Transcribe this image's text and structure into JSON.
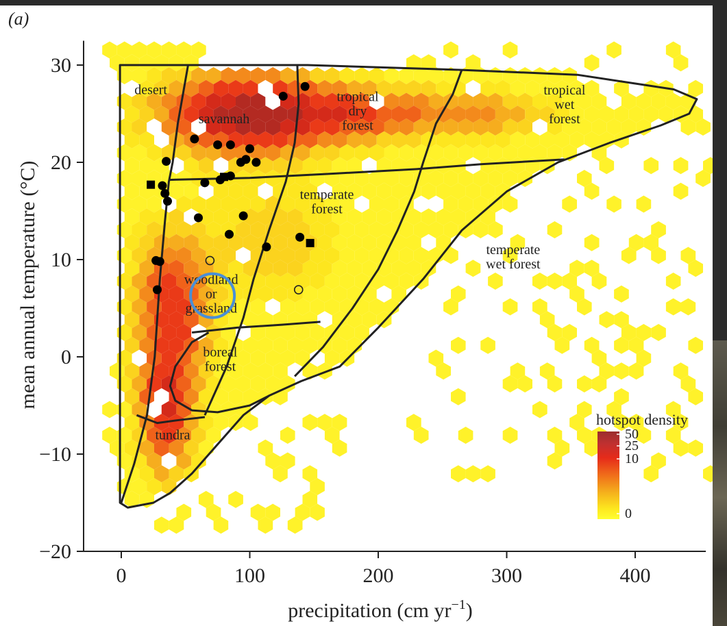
{
  "panel_label": "(a)",
  "chart_data": {
    "type": "scatter",
    "xlabel": "precipitation (cm yr",
    "xlabel_sup": "−1",
    "xlabel_close": ")",
    "ylabel": "mean annual temperature (°C)",
    "xlim": [
      -30,
      460
    ],
    "ylim": [
      -21,
      34
    ],
    "xticks": [
      0,
      100,
      200,
      300,
      400
    ],
    "xtick_labels": [
      "0",
      "100",
      "200",
      "300",
      "400"
    ],
    "yticks": [
      -20,
      -10,
      0,
      10,
      20,
      30
    ],
    "ytick_labels": [
      "−20",
      "−10",
      "0",
      "10",
      "20",
      "30"
    ],
    "grid": false,
    "biomes": [
      {
        "label": [
          "desert"
        ],
        "x": 23,
        "y": 27.5
      },
      {
        "label": [
          "savannah"
        ],
        "x": 80,
        "y": 24.5
      },
      {
        "label": [
          "tropical",
          "dry",
          "forest"
        ],
        "x": 184,
        "y": 25.3
      },
      {
        "label": [
          "tropical",
          "wet",
          "forest"
        ],
        "x": 345,
        "y": 26
      },
      {
        "label": [
          "temperate",
          "forest"
        ],
        "x": 160,
        "y": 16
      },
      {
        "label": [
          "temperate",
          "wet forest"
        ],
        "x": 305,
        "y": 10.3
      },
      {
        "label": [
          "woodland",
          "or",
          "grassland"
        ],
        "x": 70,
        "y": 6.5
      },
      {
        "label": [
          "boreal",
          "forest"
        ],
        "x": 77,
        "y": -0.2
      },
      {
        "label": [
          "tundra"
        ],
        "x": 40,
        "y": -8
      }
    ],
    "boundaries": [
      {
        "name": "outer",
        "points": [
          [
            -1,
            30
          ],
          [
            145,
            30
          ],
          [
            265,
            29.5
          ],
          [
            355,
            29
          ],
          [
            405,
            28
          ],
          [
            430,
            27.5
          ],
          [
            448,
            26.5
          ],
          [
            442,
            25
          ],
          [
            420,
            23.8
          ],
          [
            380,
            22
          ],
          [
            340,
            20
          ],
          [
            300,
            17
          ],
          [
            265,
            13
          ],
          [
            235,
            8
          ],
          [
            200,
            3
          ],
          [
            170,
            -1
          ],
          [
            140,
            -2.5
          ],
          [
            115,
            -4
          ],
          [
            95,
            -6
          ],
          [
            75,
            -9
          ],
          [
            55,
            -12
          ],
          [
            38,
            -14
          ],
          [
            25,
            -15
          ],
          [
            5,
            -15.5
          ],
          [
            -1,
            -15
          ]
        ]
      },
      {
        "name": "desert-savannah",
        "points": [
          [
            52,
            30
          ],
          [
            48,
            27
          ],
          [
            44,
            24
          ],
          [
            40,
            20
          ],
          [
            37,
            18
          ],
          [
            34,
            14
          ],
          [
            30,
            8
          ],
          [
            26,
            0
          ],
          [
            20,
            -6
          ],
          [
            10,
            -11
          ],
          [
            0,
            -15
          ]
        ]
      },
      {
        "name": "savannah-tropical-dry",
        "points": [
          [
            137,
            30
          ],
          [
            138,
            26
          ],
          [
            135,
            22
          ],
          [
            128,
            18
          ],
          [
            115,
            13
          ],
          [
            103,
            8
          ],
          [
            95,
            4
          ],
          [
            82,
            -1
          ],
          [
            65,
            -6
          ]
        ]
      },
      {
        "name": "tropical-dry-wet",
        "points": [
          [
            265,
            29.5
          ],
          [
            258,
            27
          ],
          [
            245,
            24
          ],
          [
            235,
            20
          ],
          [
            228,
            17
          ],
          [
            215,
            13
          ],
          [
            200,
            9
          ],
          [
            180,
            5
          ],
          [
            157,
            1
          ],
          [
            135,
            -2
          ]
        ]
      },
      {
        "name": "upper-horizontal",
        "points": [
          [
            37,
            18.2
          ],
          [
            100,
            18.4
          ],
          [
            160,
            18.8
          ],
          [
            230,
            19.3
          ],
          [
            280,
            19.8
          ],
          [
            345,
            20.3
          ]
        ]
      },
      {
        "name": "woodland-boreal",
        "points": [
          [
            55,
            2.5
          ],
          [
            90,
            3
          ],
          [
            125,
            3.3
          ],
          [
            155,
            3.6
          ]
        ]
      },
      {
        "name": "boreal-outline",
        "points": [
          [
            68,
            2.5
          ],
          [
            55,
            1.5
          ],
          [
            42,
            -1
          ],
          [
            38,
            -3
          ],
          [
            42,
            -4.5
          ],
          [
            55,
            -5.5
          ],
          [
            75,
            -5.7
          ],
          [
            100,
            -5
          ],
          [
            115,
            -4
          ]
        ]
      },
      {
        "name": "tundra-top",
        "points": [
          [
            12,
            -6
          ],
          [
            28,
            -6.8
          ],
          [
            45,
            -6.5
          ],
          [
            65,
            -6.2
          ]
        ]
      }
    ],
    "series": [
      {
        "marker": "filled-circle",
        "points": [
          [
            35,
            20.1
          ],
          [
            32,
            17.6
          ],
          [
            34,
            16.8
          ],
          [
            36,
            16
          ],
          [
            27,
            9.9
          ],
          [
            30,
            9.8
          ],
          [
            28,
            6.9
          ],
          [
            57,
            22.4
          ],
          [
            75,
            21.8
          ],
          [
            85,
            21.8
          ],
          [
            65,
            17.9
          ],
          [
            77,
            18.2
          ],
          [
            85,
            18.6
          ],
          [
            100,
            21.4
          ],
          [
            97,
            20.3
          ],
          [
            93,
            20
          ],
          [
            105,
            20
          ],
          [
            126,
            26.8
          ],
          [
            143,
            27.8
          ],
          [
            60,
            14.3
          ],
          [
            95,
            14.5
          ],
          [
            84,
            12.6
          ],
          [
            113,
            11.3
          ],
          [
            139,
            12.3
          ]
        ]
      },
      {
        "marker": "filled-square",
        "points": [
          [
            23,
            17.7
          ],
          [
            80,
            18.5
          ],
          [
            147,
            11.7
          ]
        ]
      },
      {
        "marker": "open-circle",
        "points": [
          [
            69,
            9.9
          ],
          [
            138,
            6.9
          ]
        ]
      }
    ],
    "legend": {
      "title": "hotspot density",
      "position": "bottom-right",
      "ticks": [
        "50",
        "25",
        "10",
        "0"
      ],
      "colors": [
        "#9a2e2e",
        "#c03030",
        "#e62b1a",
        "#f06e1a",
        "#f5b21c",
        "#fde71e",
        "#ffff30"
      ]
    },
    "annotation": {
      "shape": "circle",
      "color": "#4a8fd6",
      "x": 71,
      "y": 6.5
    }
  }
}
